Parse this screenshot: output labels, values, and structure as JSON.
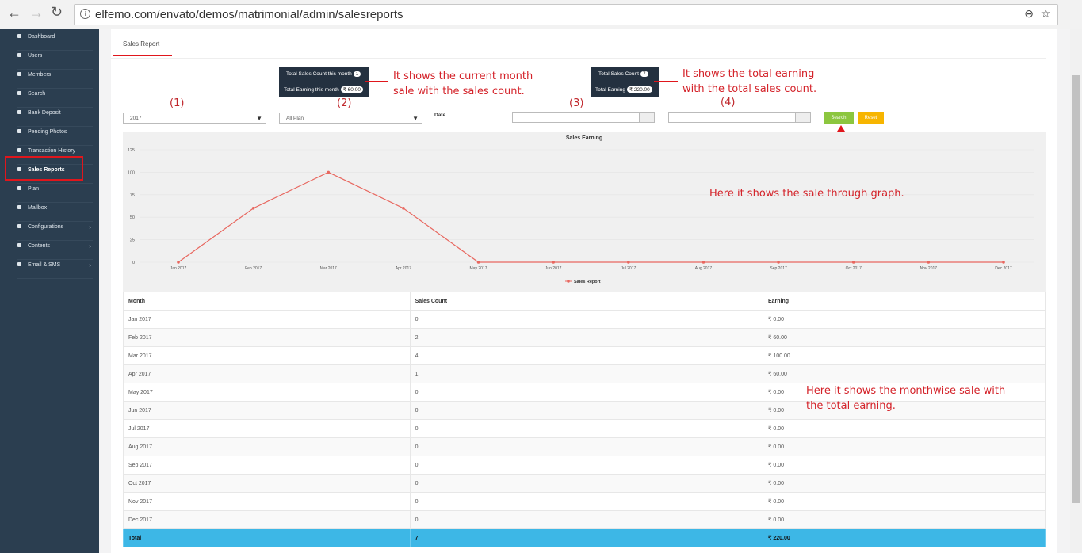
{
  "browser": {
    "url": "elfemo.com/envato/demos/matrimonial/admin/salesreports"
  },
  "sidebar": [
    "Dashboard",
    "Users",
    "Members",
    "Search",
    "Bank Deposit",
    "Pending Photos",
    "Transaction History",
    "Sales Reports",
    "Plan",
    "Mailbox",
    "Configurations",
    "Contents",
    "Email & SMS"
  ],
  "tab": "Sales Report",
  "stats_month": {
    "count_label": "Total Sales Count this month",
    "count": "1",
    "earning_label": "Total Earning this month",
    "earning": "₹ 60.00"
  },
  "stats_total": {
    "count_label": "Total Sales Count",
    "count": "7",
    "earning_label": "Total Earning",
    "earning": "₹ 220.00"
  },
  "annotations": {
    "month_note": "It shows the current month sale with the sales count.",
    "total_note": "It shows the total earning with the total sales count.",
    "graph_note": "Here it shows the sale through graph.",
    "table_note": "Here it shows the monthwise sale with the total earning."
  },
  "filters": {
    "markers": [
      "(1)",
      "(2)",
      "(3)",
      "(4)"
    ],
    "year": "2017",
    "plan": "All Plan",
    "date_label": "Date",
    "search": "Search",
    "reset": "Reset"
  },
  "chart_data": {
    "type": "line",
    "title": "Sales Earning",
    "categories": [
      "Jan 2017",
      "Feb 2017",
      "Mar 2017",
      "Apr 2017",
      "May 2017",
      "Jun 2017",
      "Jul 2017",
      "Aug 2017",
      "Sep 2017",
      "Oct 2017",
      "Nov 2017",
      "Dec 2017"
    ],
    "series": [
      {
        "name": "Sales Report",
        "color": "#e8675f",
        "values": [
          0,
          60,
          100,
          60,
          0,
          0,
          0,
          0,
          0,
          0,
          0,
          0
        ]
      }
    ],
    "ylim": [
      0,
      125
    ],
    "yticks": [
      0,
      25,
      50,
      75,
      100,
      125
    ],
    "grid": true
  },
  "table": {
    "header": [
      "Month",
      "Sales Count",
      "Earning"
    ],
    "rows": [
      [
        "Jan 2017",
        "0",
        "₹ 0.00"
      ],
      [
        "Feb 2017",
        "2",
        "₹ 60.00"
      ],
      [
        "Mar 2017",
        "4",
        "₹ 100.00"
      ],
      [
        "Apr 2017",
        "1",
        "₹ 60.00"
      ],
      [
        "May 2017",
        "0",
        "₹ 0.00"
      ],
      [
        "Jun 2017",
        "0",
        "₹ 0.00"
      ],
      [
        "Jul 2017",
        "0",
        "₹ 0.00"
      ],
      [
        "Aug 2017",
        "0",
        "₹ 0.00"
      ],
      [
        "Sep 2017",
        "0",
        "₹ 0.00"
      ],
      [
        "Oct 2017",
        "0",
        "₹ 0.00"
      ],
      [
        "Nov 2017",
        "0",
        "₹ 0.00"
      ],
      [
        "Dec 2017",
        "0",
        "₹ 0.00"
      ]
    ],
    "total": [
      "Total",
      "7",
      "₹ 220.00"
    ]
  }
}
